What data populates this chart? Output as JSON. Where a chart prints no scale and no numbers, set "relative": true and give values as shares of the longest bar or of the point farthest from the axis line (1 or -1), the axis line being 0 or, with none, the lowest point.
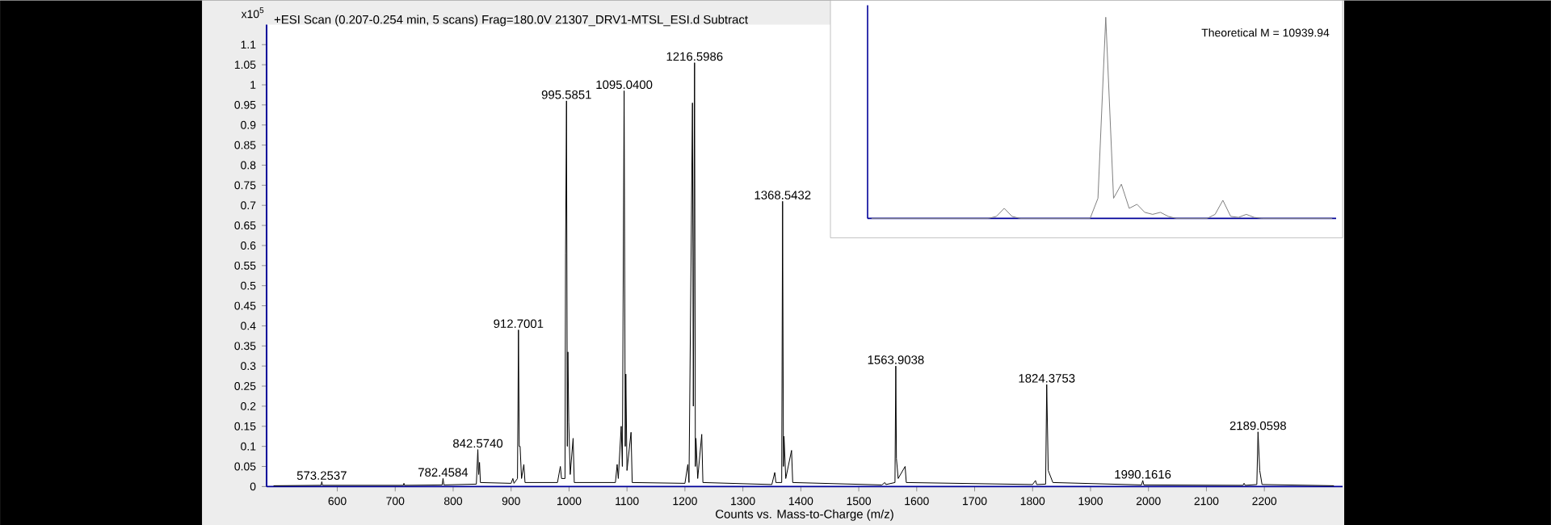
{
  "chart_data": [
    {
      "type": "line",
      "title": "+ESI Scan (0.207-0.254 min, 5 scans) Frag=180.0V 21307_DRV1-MTSL_ESI.d  Subtract",
      "xlabel": "Counts vs. Mass-to-Charge (m/z)",
      "ylabel": "x10$^{5}$",
      "color": "#000000",
      "marker": "none",
      "line_style": "solid",
      "xlim": [
        478,
        2335
      ],
      "ylim": [
        0,
        1.15
      ],
      "xticks": [
        600,
        700,
        800,
        900,
        1000,
        1100,
        1200,
        1300,
        1400,
        1500,
        1600,
        1700,
        1800,
        1900,
        2000,
        2100,
        2200
      ],
      "yticks": [
        0,
        0.05,
        0.1,
        0.15,
        0.2,
        0.25,
        0.3,
        0.35,
        0.4,
        0.45,
        0.5,
        0.55,
        0.6,
        0.65,
        0.7,
        0.75,
        0.8,
        0.85,
        0.9,
        0.95,
        1,
        1.05,
        1.1
      ],
      "x": [
        490,
        572,
        573.25,
        574.5,
        714,
        715,
        716,
        781,
        782.46,
        784,
        840,
        842.57,
        844,
        845.5,
        847,
        900,
        903,
        905,
        911,
        912.7,
        914,
        915.5,
        918,
        922,
        924,
        980,
        985,
        987,
        993,
        994,
        995.59,
        997,
        998,
        999.5,
        1002,
        1007,
        1009,
        1080,
        1083,
        1085,
        1090,
        1092,
        1095.04,
        1097,
        1098,
        1100,
        1107,
        1109,
        1200,
        1205,
        1207,
        1213,
        1214.5,
        1216.6,
        1218,
        1219,
        1222,
        1229,
        1231,
        1350,
        1355,
        1357,
        1367,
        1368.54,
        1370,
        1371,
        1374,
        1384,
        1386,
        1540,
        1545,
        1547,
        1562.5,
        1563.9,
        1565,
        1568,
        1580,
        1582,
        1800,
        1805,
        1807,
        1822.5,
        1824.38,
        1827,
        1835,
        1988,
        1990.16,
        1992,
        2163,
        2165,
        2167,
        2187,
        2189.06,
        2192,
        2196,
        2320
      ],
      "values": [
        0.002,
        0.003,
        0.012,
        0.003,
        0.003,
        0.008,
        0.003,
        0.004,
        0.02,
        0.004,
        0.006,
        0.092,
        0.03,
        0.06,
        0.01,
        0.008,
        0.02,
        0.008,
        0.02,
        0.39,
        0.1,
        0.1,
        0.02,
        0.055,
        0.01,
        0.01,
        0.05,
        0.02,
        0.02,
        0.58,
        0.96,
        0.1,
        0.335,
        0.16,
        0.03,
        0.12,
        0.01,
        0.01,
        0.055,
        0.02,
        0.15,
        0.05,
        0.985,
        0.1,
        0.28,
        0.04,
        0.135,
        0.01,
        0.008,
        0.055,
        0.01,
        0.955,
        0.2,
        1.055,
        0.05,
        0.12,
        0.02,
        0.13,
        0.01,
        0.005,
        0.035,
        0.01,
        0.01,
        0.71,
        0.05,
        0.125,
        0.02,
        0.09,
        0.01,
        0.004,
        0.01,
        0.005,
        0.01,
        0.3,
        0.07,
        0.02,
        0.05,
        0.01,
        0.005,
        0.015,
        0.005,
        0.006,
        0.254,
        0.04,
        0.01,
        0.004,
        0.015,
        0.004,
        0.003,
        0.008,
        0.003,
        0.005,
        0.136,
        0.04,
        0.005,
        0.002
      ],
      "annotations": [
        {
          "text": "573.2537",
          "x": 573.25,
          "y": 0.012
        },
        {
          "text": "782.4584",
          "x": 782.46,
          "y": 0.02
        },
        {
          "text": "842.5740",
          "x": 842.57,
          "y": 0.092
        },
        {
          "text": "912.7001",
          "x": 912.7,
          "y": 0.39
        },
        {
          "text": "995.5851",
          "x": 995.59,
          "y": 0.96
        },
        {
          "text": "1095.0400",
          "x": 1095.04,
          "y": 0.985
        },
        {
          "text": "1216.5986",
          "x": 1216.6,
          "y": 1.055
        },
        {
          "text": "1368.5432",
          "x": 1368.54,
          "y": 0.71
        },
        {
          "text": "1563.9038",
          "x": 1563.9,
          "y": 0.3
        },
        {
          "text": "1824.3753",
          "x": 1824.38,
          "y": 0.254
        },
        {
          "text": "1990.1616",
          "x": 1990.16,
          "y": 0.015
        },
        {
          "text": "2189.0598",
          "x": 2189.06,
          "y": 0.136
        }
      ]
    },
    {
      "type": "line",
      "relative": true,
      "color": "#808080",
      "marker": "none",
      "line_style": "solid",
      "categories": [
        null,
        null,
        null,
        null,
        null,
        null,
        null,
        null,
        null,
        null,
        null,
        null,
        null,
        null,
        null,
        null,
        null,
        null,
        null,
        null,
        null,
        null,
        null,
        null,
        null,
        null,
        null,
        null,
        null,
        null,
        null,
        null,
        null,
        null,
        null,
        null,
        null,
        null,
        null,
        null,
        null,
        null,
        null,
        null,
        null,
        null,
        null,
        null,
        null,
        null,
        null,
        null,
        null,
        null,
        null,
        null,
        null,
        null,
        null,
        null
      ],
      "values": [
        0,
        0,
        0,
        0,
        0,
        0,
        0,
        0,
        0,
        0,
        0,
        0,
        0,
        0,
        0,
        0,
        0.01,
        0.05,
        0.01,
        0,
        0,
        0,
        0,
        0,
        0,
        0,
        0,
        0,
        0,
        0.1,
        1,
        0.1,
        0.17,
        0.05,
        0.07,
        0.03,
        0.02,
        0.03,
        0.01,
        0,
        0,
        0,
        0,
        0,
        0.02,
        0.09,
        0.01,
        0.005,
        0.02,
        0.005,
        0,
        0,
        0,
        0,
        0,
        0,
        0,
        0,
        0,
        0
      ],
      "annotations": [
        "Theoretical M = 10939.94"
      ]
    }
  ]
}
